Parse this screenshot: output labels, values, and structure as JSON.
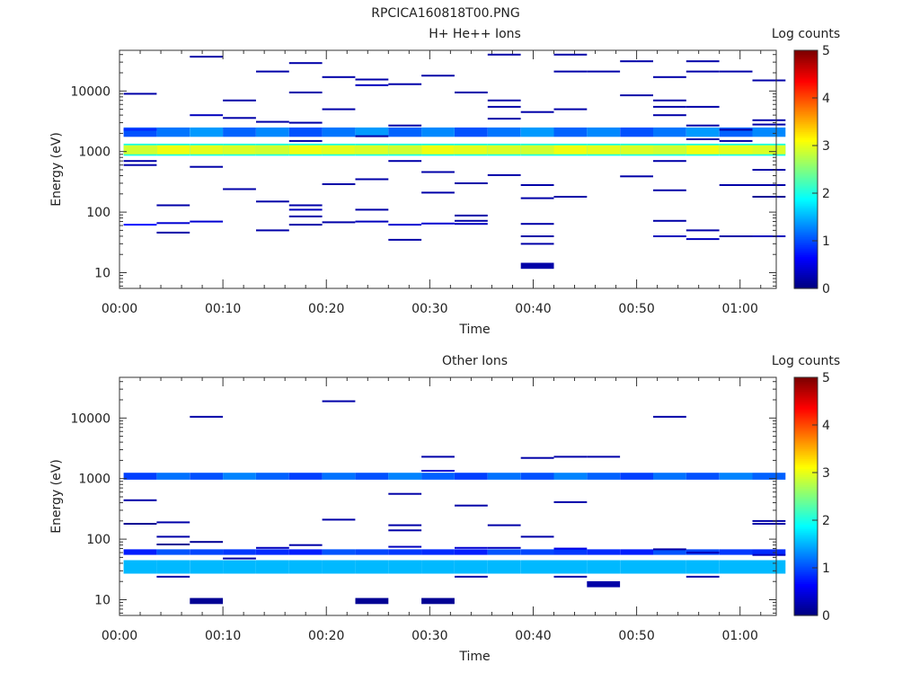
{
  "figure": {
    "title": "RPCICA160818T00.PNG"
  },
  "chart_data": [
    {
      "type": "heatmap",
      "title": "H+ He++ Ions",
      "xlabel": "Time",
      "ylabel": "Energy (eV)",
      "x_ticks": [
        "00:00",
        "00:10",
        "00:20",
        "00:30",
        "00:40",
        "00:50",
        "01:00"
      ],
      "x_tick_minutes": [
        0,
        10,
        20,
        30,
        40,
        50,
        60
      ],
      "xlim_minutes": [
        0,
        63.5
      ],
      "y_scale": "log",
      "y_ticks": [
        "10",
        "100",
        "1000",
        "10000"
      ],
      "y_tick_values": [
        10,
        100,
        1000,
        10000
      ],
      "ylim": [
        5.5,
        47000
      ],
      "time_bins_minutes": [
        2,
        5.2,
        8.4,
        11.6,
        14.8,
        18,
        21.2,
        24.4,
        27.6,
        30.8,
        34,
        37.2,
        40.4,
        43.6,
        46.8,
        50,
        53.2,
        56.4,
        59.6,
        62.8
      ],
      "colorbar": {
        "label": "Log counts",
        "ticks": [
          "0",
          "1",
          "2",
          "3",
          "4",
          "5"
        ],
        "min": 0,
        "max": 5
      },
      "core_band": {
        "energy_range_ev": [
          850,
          1350
        ],
        "level": 2.9,
        "edge_level": 2.0,
        "upper_band_ev": [
          1750,
          2500
        ],
        "upper_band_level": 1.2
      },
      "sparse_cells": [
        {
          "bin": 0,
          "e": 9000,
          "level": 0.2
        },
        {
          "bin": 0,
          "e": 2300,
          "level": 0.8
        },
        {
          "bin": 0,
          "e": 700,
          "level": 0.2
        },
        {
          "bin": 0,
          "e": 600,
          "level": 0.2
        },
        {
          "bin": 0,
          "e": 62,
          "level": 0.7
        },
        {
          "bin": 1,
          "e": 130,
          "level": 0.2
        },
        {
          "bin": 1,
          "e": 66,
          "level": 0.4
        },
        {
          "bin": 1,
          "e": 46,
          "level": 0.2
        },
        {
          "bin": 2,
          "e": 37000,
          "level": 0.2
        },
        {
          "bin": 2,
          "e": 4000,
          "level": 0.3
        },
        {
          "bin": 2,
          "e": 560,
          "level": 0.2
        },
        {
          "bin": 2,
          "e": 70,
          "level": 0.4
        },
        {
          "bin": 3,
          "e": 7000,
          "level": 0.2
        },
        {
          "bin": 3,
          "e": 3600,
          "level": 0.2
        },
        {
          "bin": 3,
          "e": 240,
          "level": 0.2
        },
        {
          "bin": 4,
          "e": 21000,
          "level": 0.2
        },
        {
          "bin": 4,
          "e": 3100,
          "level": 0.2
        },
        {
          "bin": 4,
          "e": 150,
          "level": 0.2
        },
        {
          "bin": 4,
          "e": 50,
          "level": 0.2
        },
        {
          "bin": 5,
          "e": 29000,
          "level": 0.2
        },
        {
          "bin": 5,
          "e": 9500,
          "level": 0.2
        },
        {
          "bin": 5,
          "e": 3000,
          "level": 0.2
        },
        {
          "bin": 5,
          "e": 1500,
          "level": 0.2
        },
        {
          "bin": 5,
          "e": 130,
          "level": 0.2
        },
        {
          "bin": 5,
          "e": 110,
          "level": 0.3
        },
        {
          "bin": 5,
          "e": 85,
          "level": 0.2
        },
        {
          "bin": 5,
          "e": 62,
          "level": 0.2
        },
        {
          "bin": 6,
          "e": 17000,
          "level": 0.2
        },
        {
          "bin": 6,
          "e": 5000,
          "level": 0.2
        },
        {
          "bin": 6,
          "e": 290,
          "level": 0.2
        },
        {
          "bin": 6,
          "e": 68,
          "level": 0.2
        },
        {
          "bin": 7,
          "e": 15500,
          "level": 0.2
        },
        {
          "bin": 7,
          "e": 12500,
          "level": 0.3
        },
        {
          "bin": 7,
          "e": 1800,
          "level": 0.2
        },
        {
          "bin": 7,
          "e": 350,
          "level": 0.2
        },
        {
          "bin": 7,
          "e": 110,
          "level": 0.2
        },
        {
          "bin": 7,
          "e": 70,
          "level": 0.3
        },
        {
          "bin": 8,
          "e": 13000,
          "level": 0.2
        },
        {
          "bin": 8,
          "e": 2700,
          "level": 0.2
        },
        {
          "bin": 8,
          "e": 700,
          "level": 0.2
        },
        {
          "bin": 8,
          "e": 62,
          "level": 0.4
        },
        {
          "bin": 8,
          "e": 35,
          "level": 0.2
        },
        {
          "bin": 9,
          "e": 18000,
          "level": 0.2
        },
        {
          "bin": 9,
          "e": 460,
          "level": 0.2
        },
        {
          "bin": 9,
          "e": 210,
          "level": 0.2
        },
        {
          "bin": 9,
          "e": 65,
          "level": 0.4
        },
        {
          "bin": 10,
          "e": 9500,
          "level": 0.2
        },
        {
          "bin": 10,
          "e": 300,
          "level": 0.2
        },
        {
          "bin": 10,
          "e": 88,
          "level": 0.2
        },
        {
          "bin": 10,
          "e": 72,
          "level": 0.2
        },
        {
          "bin": 10,
          "e": 64,
          "level": 0.3
        },
        {
          "bin": 11,
          "e": 40000,
          "level": 0.2
        },
        {
          "bin": 11,
          "e": 7000,
          "level": 0.2
        },
        {
          "bin": 11,
          "e": 5500,
          "level": 0.2
        },
        {
          "bin": 11,
          "e": 3500,
          "level": 0.2
        },
        {
          "bin": 11,
          "e": 410,
          "level": 0.2
        },
        {
          "bin": 12,
          "e": 4500,
          "level": 0.2
        },
        {
          "bin": 12,
          "e": 280,
          "level": 0.2
        },
        {
          "bin": 12,
          "e": 170,
          "level": 0.2
        },
        {
          "bin": 12,
          "e": 64,
          "level": 0.2
        },
        {
          "bin": 12,
          "e": 40,
          "level": 0.2
        },
        {
          "bin": 12,
          "e": 30,
          "level": 0.2
        },
        {
          "bin": 12,
          "e": 13,
          "level": 0.2
        },
        {
          "bin": 13,
          "e": 40000,
          "level": 0.2
        },
        {
          "bin": 13,
          "e": 21000,
          "level": 0.2
        },
        {
          "bin": 13,
          "e": 5000,
          "level": 0.2
        },
        {
          "bin": 13,
          "e": 180,
          "level": 0.2
        },
        {
          "bin": 14,
          "e": 21000,
          "level": 0.2
        },
        {
          "bin": 15,
          "e": 31000,
          "level": 0.2
        },
        {
          "bin": 15,
          "e": 8500,
          "level": 0.2
        },
        {
          "bin": 15,
          "e": 390,
          "level": 0.2
        },
        {
          "bin": 16,
          "e": 17000,
          "level": 0.2
        },
        {
          "bin": 16,
          "e": 7000,
          "level": 0.2
        },
        {
          "bin": 16,
          "e": 5500,
          "level": 0.2
        },
        {
          "bin": 16,
          "e": 4000,
          "level": 0.2
        },
        {
          "bin": 16,
          "e": 700,
          "level": 0.2
        },
        {
          "bin": 16,
          "e": 230,
          "level": 0.2
        },
        {
          "bin": 16,
          "e": 72,
          "level": 0.2
        },
        {
          "bin": 16,
          "e": 40,
          "level": 0.3
        },
        {
          "bin": 17,
          "e": 31000,
          "level": 0.2
        },
        {
          "bin": 17,
          "e": 21000,
          "level": 0.2
        },
        {
          "bin": 17,
          "e": 5500,
          "level": 0.2
        },
        {
          "bin": 17,
          "e": 2700,
          "level": 0.2
        },
        {
          "bin": 17,
          "e": 1600,
          "level": 0.2
        },
        {
          "bin": 17,
          "e": 50,
          "level": 0.2
        },
        {
          "bin": 17,
          "e": 36,
          "level": 0.3
        },
        {
          "bin": 18,
          "e": 21000,
          "level": 0.2
        },
        {
          "bin": 18,
          "e": 2300,
          "level": 0.2
        },
        {
          "bin": 18,
          "e": 1500,
          "level": 0.2
        },
        {
          "bin": 18,
          "e": 280,
          "level": 0.2
        },
        {
          "bin": 18,
          "e": 40,
          "level": 0.2
        },
        {
          "bin": 19,
          "e": 15000,
          "level": 0.2
        },
        {
          "bin": 19,
          "e": 3300,
          "level": 0.2
        },
        {
          "bin": 19,
          "e": 2800,
          "level": 0.2
        },
        {
          "bin": 19,
          "e": 500,
          "level": 0.2
        },
        {
          "bin": 19,
          "e": 280,
          "level": 0.2
        },
        {
          "bin": 19,
          "e": 180,
          "level": 0.1
        },
        {
          "bin": 19,
          "e": 40,
          "level": 0.3
        }
      ]
    },
    {
      "type": "heatmap",
      "title": "Other Ions",
      "xlabel": "Time",
      "ylabel": "Energy (eV)",
      "x_ticks": [
        "00:00",
        "00:10",
        "00:20",
        "00:30",
        "00:40",
        "00:50",
        "01:00"
      ],
      "x_tick_minutes": [
        0,
        10,
        20,
        30,
        40,
        50,
        60
      ],
      "xlim_minutes": [
        0,
        63.5
      ],
      "y_scale": "log",
      "y_ticks": [
        "10",
        "100",
        "1000",
        "10000"
      ],
      "y_tick_values": [
        10,
        100,
        1000,
        10000
      ],
      "ylim": [
        5.5,
        47000
      ],
      "time_bins_minutes": [
        2,
        5.2,
        8.4,
        11.6,
        14.8,
        18,
        21.2,
        24.4,
        27.6,
        30.8,
        34,
        37.2,
        40.4,
        43.6,
        46.8,
        50,
        53.2,
        56.4,
        59.6,
        62.8
      ],
      "colorbar": {
        "label": "Log counts",
        "ticks": [
          "0",
          "1",
          "2",
          "3",
          "4",
          "5"
        ],
        "min": 0,
        "max": 5
      },
      "bands": [
        {
          "energy_range_ev": [
            960,
            1250
          ],
          "level": 1.1
        },
        {
          "energy_range_ev": [
            55,
            68
          ],
          "level": 0.9
        },
        {
          "energy_range_ev": [
            27,
            45
          ],
          "level": 1.8
        }
      ],
      "sparse_cells": [
        {
          "bin": 0,
          "e": 440,
          "level": 0.2
        },
        {
          "bin": 0,
          "e": 180,
          "level": 0.1
        },
        {
          "bin": 1,
          "e": 190,
          "level": 0.2
        },
        {
          "bin": 1,
          "e": 110,
          "level": 0.2
        },
        {
          "bin": 1,
          "e": 82,
          "level": 0.1
        },
        {
          "bin": 1,
          "e": 24,
          "level": 0.2
        },
        {
          "bin": 2,
          "e": 10500,
          "level": 0.2
        },
        {
          "bin": 2,
          "e": 90,
          "level": 0.1
        },
        {
          "bin": 2,
          "e": 9.5,
          "level": 0.1
        },
        {
          "bin": 3,
          "e": 48,
          "level": 0.2
        },
        {
          "bin": 4,
          "e": 72,
          "level": 0.3
        },
        {
          "bin": 5,
          "e": 80,
          "level": 0.2
        },
        {
          "bin": 6,
          "e": 19000,
          "level": 0.2
        },
        {
          "bin": 6,
          "e": 210,
          "level": 0.2
        },
        {
          "bin": 7,
          "e": 9.5,
          "level": 0.1
        },
        {
          "bin": 8,
          "e": 560,
          "level": 0.2
        },
        {
          "bin": 8,
          "e": 170,
          "level": 0.2
        },
        {
          "bin": 8,
          "e": 140,
          "level": 0.2
        },
        {
          "bin": 8,
          "e": 75,
          "level": 0.3
        },
        {
          "bin": 9,
          "e": 2300,
          "level": 0.2
        },
        {
          "bin": 9,
          "e": 1350,
          "level": 0.4
        },
        {
          "bin": 9,
          "e": 9.5,
          "level": 0.1
        },
        {
          "bin": 10,
          "e": 360,
          "level": 0.2
        },
        {
          "bin": 10,
          "e": 72,
          "level": 0.4
        },
        {
          "bin": 10,
          "e": 24,
          "level": 0.2
        },
        {
          "bin": 11,
          "e": 170,
          "level": 0.2
        },
        {
          "bin": 11,
          "e": 72,
          "level": 0.3
        },
        {
          "bin": 12,
          "e": 2200,
          "level": 0.2
        },
        {
          "bin": 12,
          "e": 110,
          "level": 0.2
        },
        {
          "bin": 13,
          "e": 2300,
          "level": 0.2
        },
        {
          "bin": 13,
          "e": 410,
          "level": 0.2
        },
        {
          "bin": 13,
          "e": 70,
          "level": 0.5
        },
        {
          "bin": 13,
          "e": 24,
          "level": 0.2
        },
        {
          "bin": 14,
          "e": 2300,
          "level": 0.2
        },
        {
          "bin": 14,
          "e": 18,
          "level": 0.2
        },
        {
          "bin": 16,
          "e": 10500,
          "level": 0.2
        },
        {
          "bin": 16,
          "e": 68,
          "level": 0.2
        },
        {
          "bin": 17,
          "e": 60,
          "level": 0.3
        },
        {
          "bin": 17,
          "e": 24,
          "level": 0.2
        },
        {
          "bin": 19,
          "e": 200,
          "level": 0.2
        },
        {
          "bin": 19,
          "e": 180,
          "level": 0.2
        },
        {
          "bin": 19,
          "e": 55,
          "level": 0.3
        }
      ]
    }
  ]
}
